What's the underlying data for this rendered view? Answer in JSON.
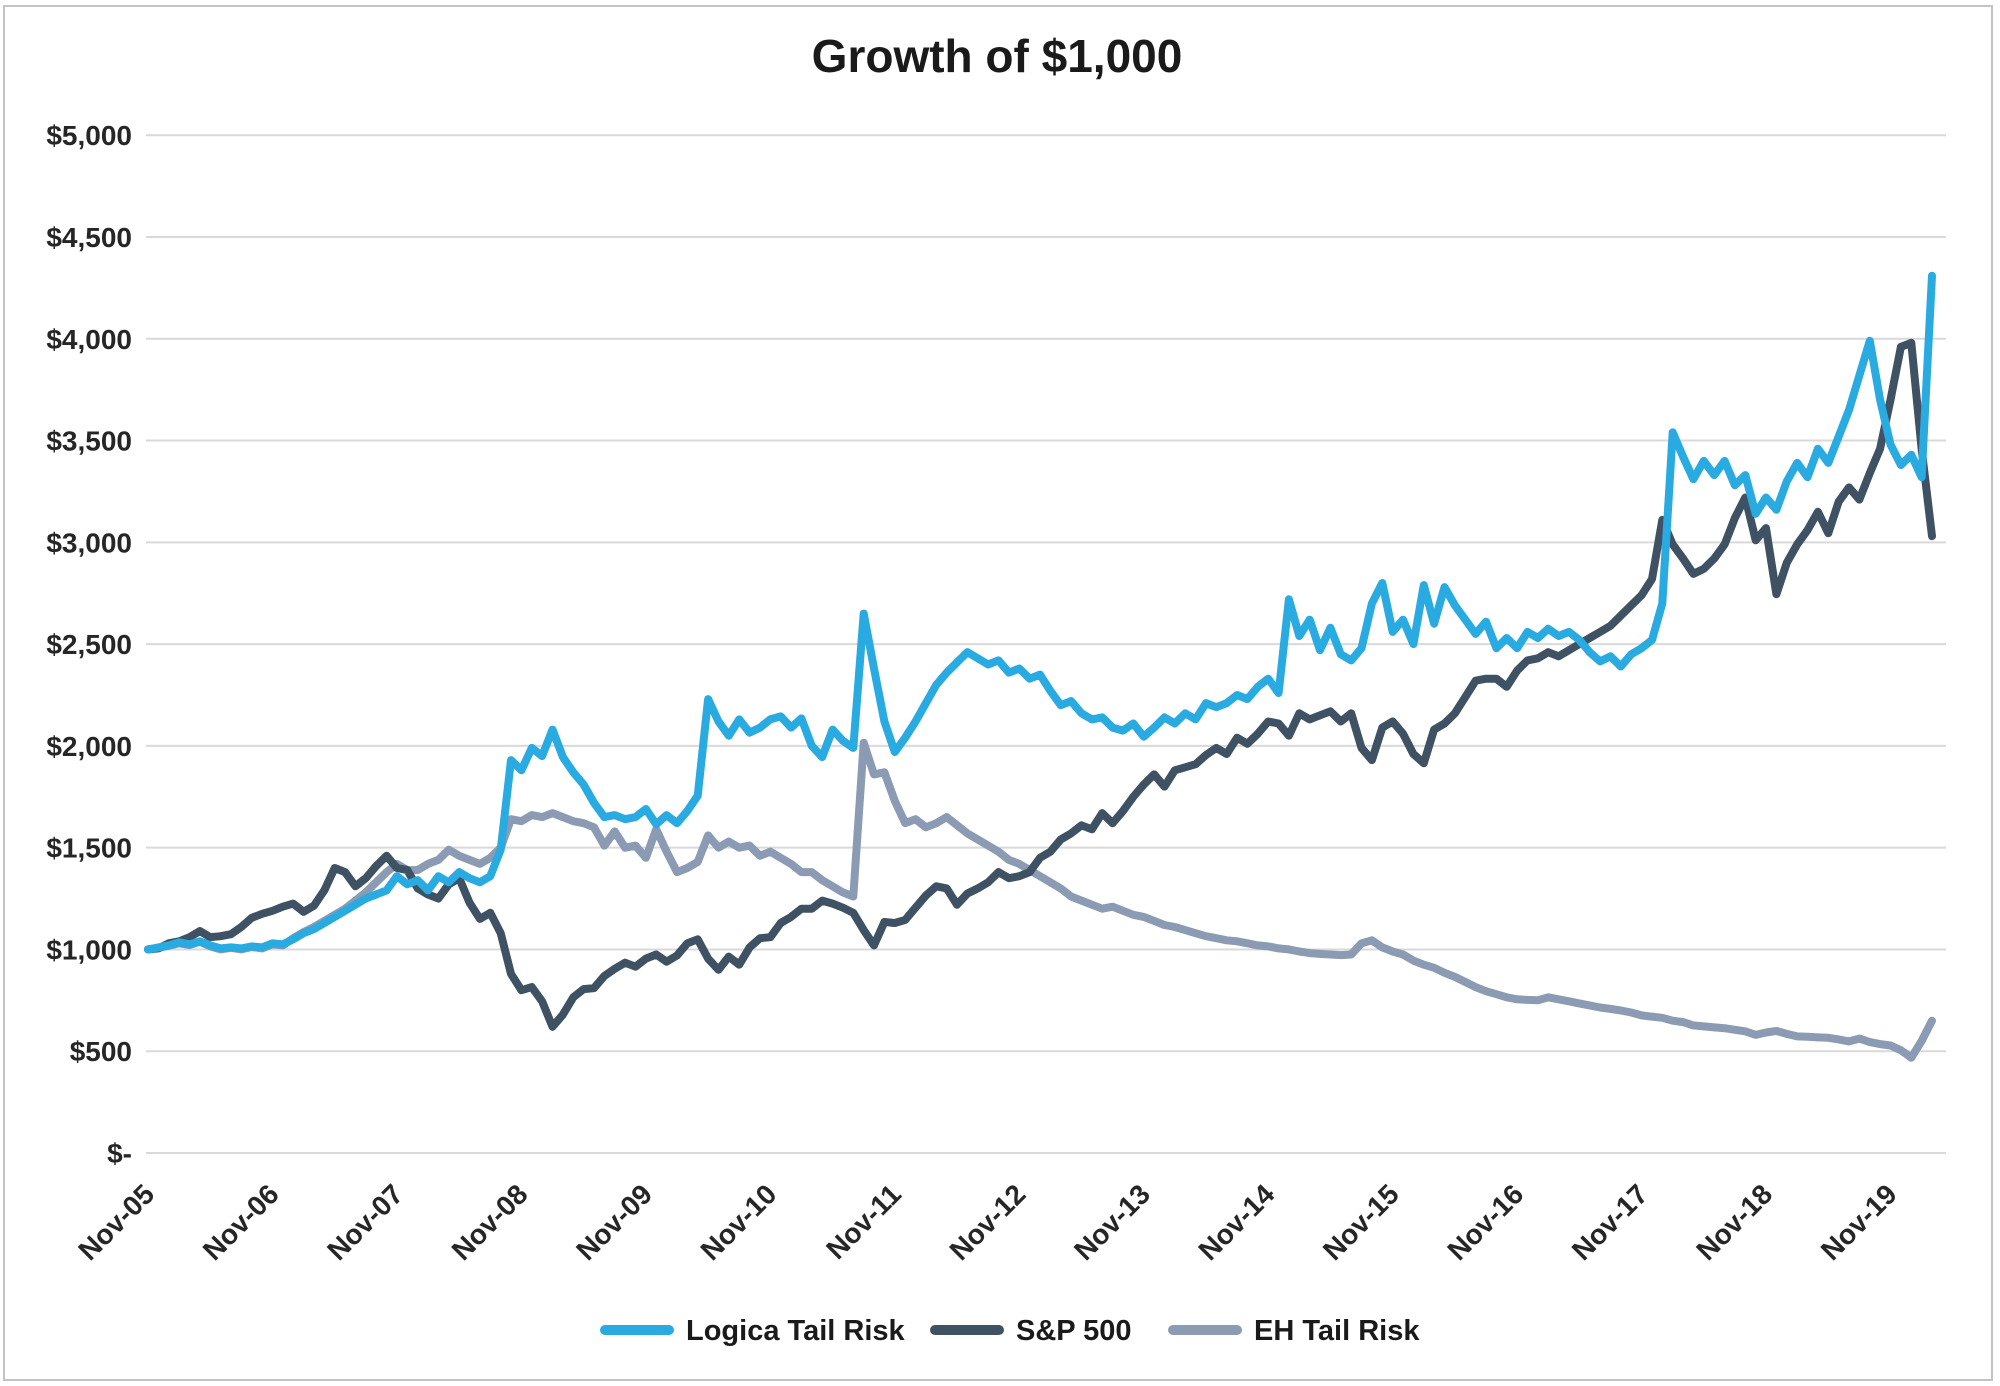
{
  "figure": {
    "title": "Growth of $1,000"
  },
  "chart_data": {
    "type": "line",
    "title": "Growth of $1,000",
    "x_start": "Nov-2005",
    "x_end": "Mar-2020",
    "frequency": "monthly",
    "grid": "horizontal",
    "legend_position": "bottom",
    "ylim": [
      0,
      5000
    ],
    "y_tick_step": 500,
    "y_tick_labels": [
      "$-",
      "$500",
      "$1,000",
      "$1,500",
      "$2,000",
      "$2,500",
      "$3,000",
      "$3,500",
      "$4,000",
      "$4,500",
      "$5,000"
    ],
    "x_tick_labels": [
      "Nov-05",
      "Nov-06",
      "Nov-07",
      "Nov-08",
      "Nov-09",
      "Nov-10",
      "Nov-11",
      "Nov-12",
      "Nov-13",
      "Nov-14",
      "Nov-15",
      "Nov-16",
      "Nov-17",
      "Nov-18",
      "Nov-19"
    ],
    "x_tick_every_n_points": 12,
    "colors": {
      "grid": "#d9d9d9",
      "frame": "#c3c3c3",
      "background": "#ffffff"
    },
    "series": [
      {
        "name": "Logica Tail Risk",
        "color": "#29abe2",
        "values": [
          1000,
          1010,
          1020,
          1035,
          1025,
          1040,
          1020,
          1005,
          1010,
          1005,
          1015,
          1010,
          1030,
          1025,
          1050,
          1080,
          1100,
          1130,
          1160,
          1190,
          1220,
          1250,
          1270,
          1290,
          1360,
          1320,
          1340,
          1290,
          1360,
          1330,
          1380,
          1350,
          1330,
          1360,
          1490,
          1930,
          1880,
          1990,
          1950,
          2080,
          1945,
          1870,
          1810,
          1720,
          1650,
          1660,
          1640,
          1650,
          1690,
          1615,
          1660,
          1620,
          1680,
          1755,
          2230,
          2120,
          2050,
          2130,
          2065,
          2090,
          2130,
          2145,
          2090,
          2135,
          2000,
          1945,
          2080,
          2025,
          1990,
          2650,
          2380,
          2120,
          1970,
          2040,
          2120,
          2210,
          2300,
          2360,
          2410,
          2460,
          2430,
          2400,
          2420,
          2360,
          2380,
          2330,
          2350,
          2270,
          2200,
          2220,
          2160,
          2130,
          2140,
          2090,
          2075,
          2110,
          2045,
          2090,
          2140,
          2110,
          2160,
          2130,
          2210,
          2190,
          2210,
          2250,
          2230,
          2290,
          2330,
          2260,
          2720,
          2540,
          2620,
          2470,
          2580,
          2450,
          2420,
          2480,
          2700,
          2800,
          2560,
          2620,
          2500,
          2790,
          2600,
          2780,
          2690,
          2620,
          2550,
          2610,
          2480,
          2530,
          2480,
          2560,
          2530,
          2575,
          2540,
          2560,
          2520,
          2460,
          2415,
          2440,
          2390,
          2450,
          2480,
          2520,
          2700,
          3540,
          3420,
          3310,
          3400,
          3330,
          3400,
          3280,
          3330,
          3140,
          3220,
          3160,
          3300,
          3390,
          3320,
          3460,
          3390,
          3520,
          3650,
          3820,
          3990,
          3700,
          3480,
          3380,
          3430,
          3320,
          4310
        ]
      },
      {
        "name": "S&P 500",
        "color": "#3f5264",
        "values": [
          1000,
          1005,
          1030,
          1040,
          1060,
          1090,
          1060,
          1065,
          1075,
          1110,
          1155,
          1175,
          1190,
          1210,
          1225,
          1185,
          1215,
          1290,
          1400,
          1380,
          1310,
          1350,
          1410,
          1460,
          1400,
          1390,
          1300,
          1270,
          1250,
          1320,
          1350,
          1230,
          1150,
          1180,
          1080,
          880,
          800,
          815,
          745,
          620,
          680,
          765,
          805,
          810,
          870,
          905,
          935,
          915,
          955,
          975,
          940,
          970,
          1030,
          1050,
          955,
          900,
          965,
          925,
          1010,
          1055,
          1060,
          1130,
          1160,
          1200,
          1200,
          1240,
          1225,
          1205,
          1180,
          1095,
          1020,
          1135,
          1130,
          1145,
          1205,
          1265,
          1310,
          1300,
          1220,
          1275,
          1300,
          1330,
          1380,
          1350,
          1360,
          1380,
          1450,
          1480,
          1540,
          1570,
          1610,
          1590,
          1670,
          1620,
          1680,
          1750,
          1810,
          1860,
          1800,
          1880,
          1895,
          1910,
          1955,
          1990,
          1960,
          2040,
          2010,
          2060,
          2120,
          2110,
          2050,
          2160,
          2130,
          2150,
          2170,
          2120,
          2160,
          1990,
          1930,
          2090,
          2120,
          2060,
          1960,
          1915,
          2080,
          2110,
          2160,
          2240,
          2320,
          2330,
          2330,
          2290,
          2370,
          2420,
          2430,
          2460,
          2440,
          2470,
          2500,
          2530,
          2560,
          2590,
          2640,
          2690,
          2740,
          2820,
          3110,
          2990,
          2920,
          2845,
          2870,
          2920,
          2990,
          3120,
          3220,
          3010,
          3070,
          2745,
          2900,
          2990,
          3060,
          3150,
          3045,
          3200,
          3270,
          3210,
          3340,
          3460,
          3700,
          3960,
          3980,
          3460,
          3030
        ]
      },
      {
        "name": "EH Tail Risk",
        "color": "#8a9bb3",
        "values": [
          1000,
          1008,
          1018,
          1030,
          1022,
          1038,
          1015,
          1000,
          1008,
          1000,
          1012,
          1005,
          1025,
          1020,
          1055,
          1085,
          1110,
          1140,
          1170,
          1200,
          1240,
          1280,
          1330,
          1380,
          1420,
          1390,
          1390,
          1420,
          1440,
          1490,
          1460,
          1440,
          1420,
          1450,
          1500,
          1640,
          1630,
          1660,
          1650,
          1670,
          1650,
          1630,
          1620,
          1600,
          1510,
          1580,
          1500,
          1510,
          1450,
          1590,
          1480,
          1380,
          1400,
          1430,
          1560,
          1500,
          1530,
          1500,
          1510,
          1460,
          1480,
          1450,
          1420,
          1380,
          1380,
          1340,
          1310,
          1280,
          1260,
          2015,
          1860,
          1870,
          1730,
          1620,
          1640,
          1600,
          1620,
          1650,
          1610,
          1570,
          1540,
          1510,
          1480,
          1440,
          1420,
          1390,
          1360,
          1330,
          1300,
          1260,
          1240,
          1220,
          1200,
          1210,
          1190,
          1170,
          1160,
          1140,
          1120,
          1110,
          1095,
          1080,
          1065,
          1055,
          1045,
          1040,
          1030,
          1020,
          1015,
          1005,
          1000,
          990,
          982,
          978,
          975,
          972,
          975,
          1030,
          1045,
          1010,
          990,
          975,
          945,
          925,
          910,
          885,
          865,
          840,
          815,
          795,
          780,
          765,
          755,
          752,
          750,
          765,
          755,
          745,
          735,
          725,
          715,
          708,
          700,
          690,
          676,
          670,
          664,
          650,
          643,
          627,
          622,
          617,
          613,
          605,
          598,
          580,
          592,
          600,
          585,
          573,
          571,
          568,
          566,
          558,
          548,
          562,
          545,
          535,
          528,
          505,
          468,
          550,
          650
        ]
      }
    ]
  }
}
